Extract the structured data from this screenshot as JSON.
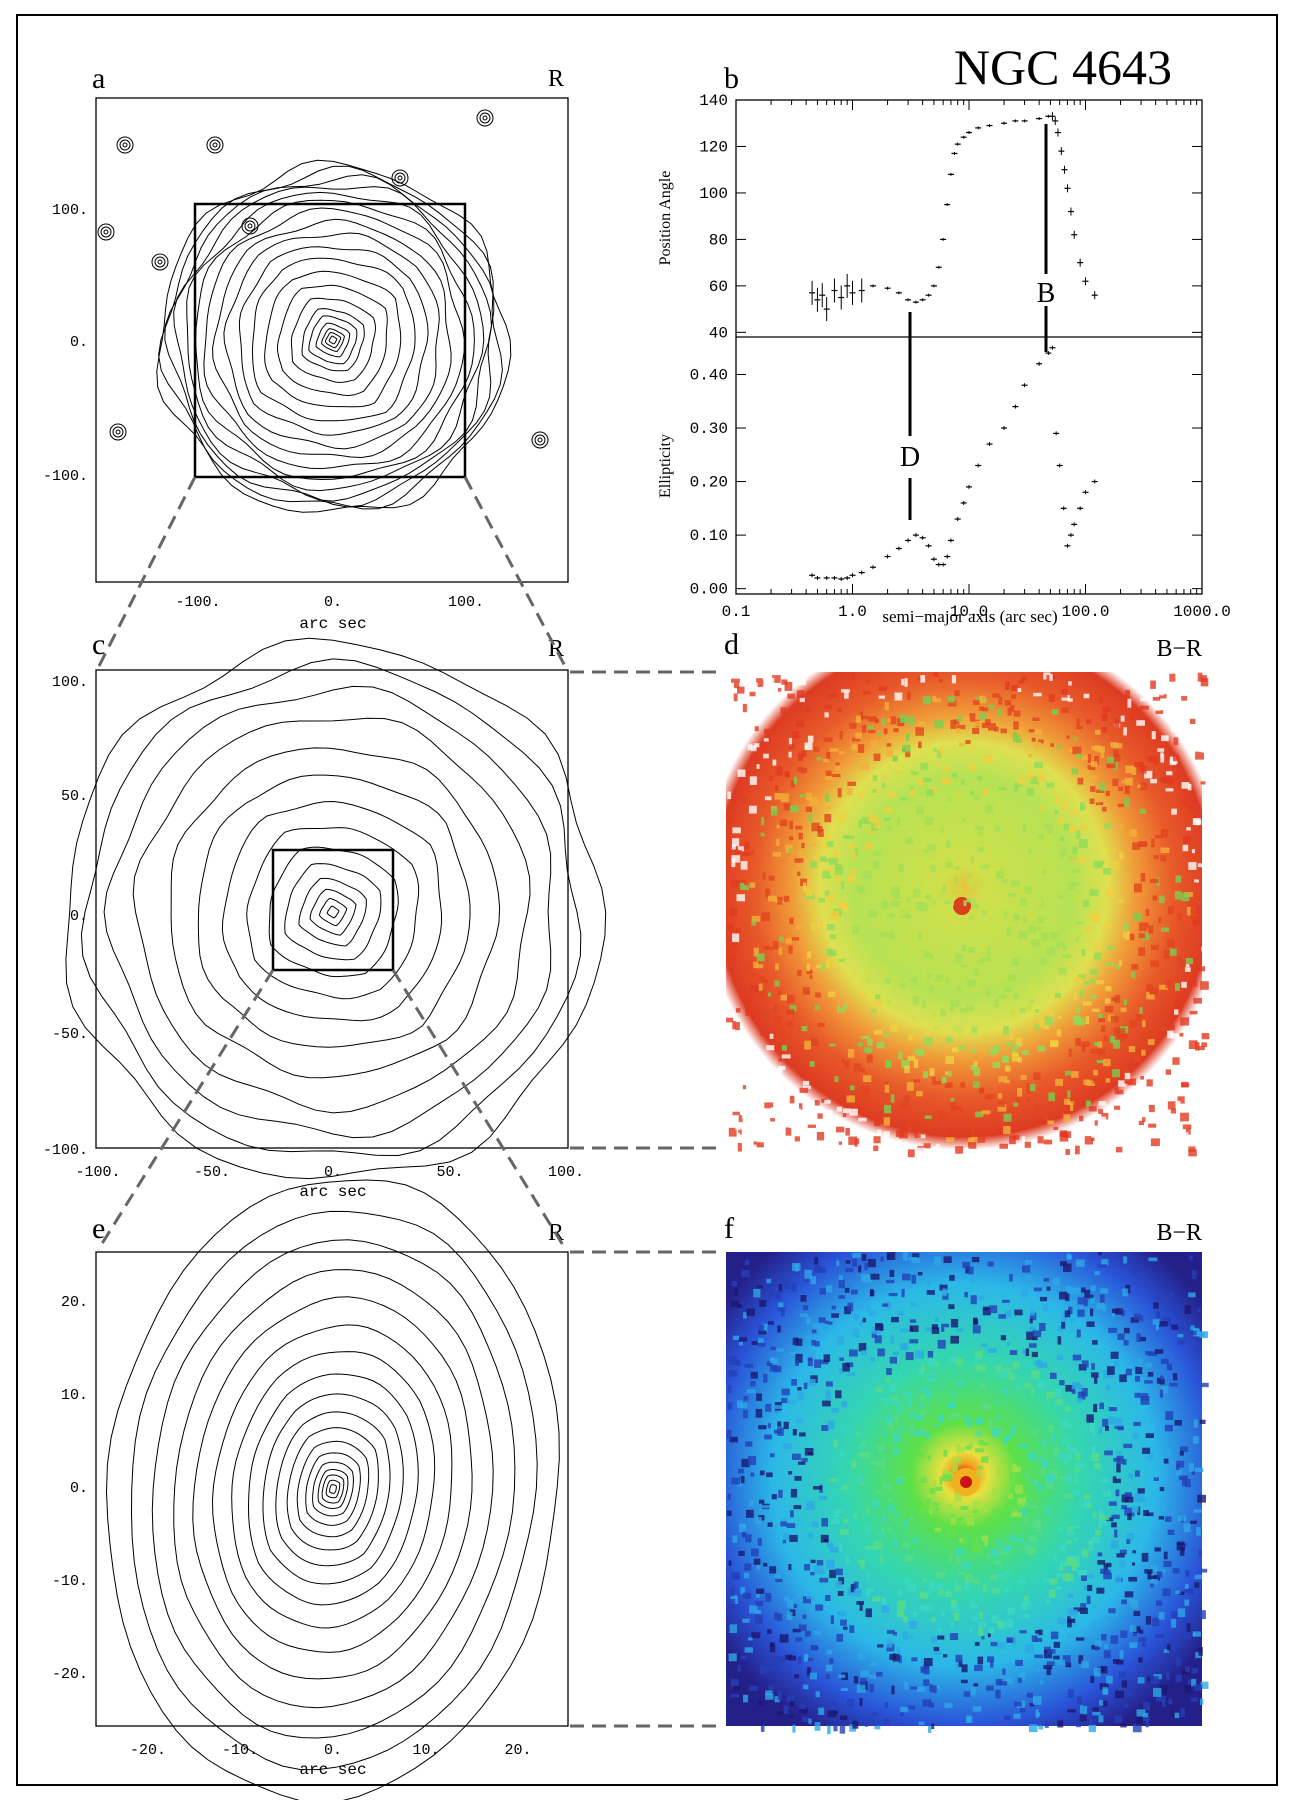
{
  "title": "NGC 4643",
  "panels": {
    "a": {
      "letter": "a",
      "band": "R",
      "xlabel": "arc sec",
      "xticks": [
        "-100.",
        "0.",
        "100."
      ],
      "yticks": [
        "100.",
        "0.",
        "-100."
      ]
    },
    "b": {
      "letter": "b",
      "xlabel": "semi−major axis (arc sec)",
      "top_ylabel": "Position Angle",
      "bottom_ylabel": "Ellipticity",
      "xticks": [
        "0.1",
        "1.0",
        "10.0",
        "100.0",
        "1000.0"
      ],
      "pa_ticks": [
        "140",
        "120",
        "100",
        "80",
        "60",
        "40"
      ],
      "ell_ticks": [
        "0.40",
        "0.30",
        "0.20",
        "0.10",
        "0.00"
      ],
      "marker_B": "B",
      "marker_D": "D"
    },
    "c": {
      "letter": "c",
      "band": "R",
      "xlabel": "arc sec",
      "xticks": [
        "-100.",
        "-50.",
        "0.",
        "50.",
        "100."
      ],
      "yticks": [
        "100.",
        "50.",
        "0.",
        "-50.",
        "-100."
      ]
    },
    "d": {
      "letter": "d",
      "band": "B−R"
    },
    "e": {
      "letter": "e",
      "band": "R",
      "xlabel": "arc sec",
      "xticks": [
        "-20.",
        "-10.",
        "0.",
        "10.",
        "20."
      ],
      "yticks": [
        "20.",
        "10.",
        "0.",
        "-10.",
        "-20."
      ]
    },
    "f": {
      "letter": "f",
      "band": "B−R"
    }
  },
  "chart_data": [
    {
      "type": "scatter",
      "panel": "b-top",
      "ylabel": "Position Angle",
      "x_scale": "log",
      "xlim": [
        0.1,
        1000.0
      ],
      "ylim": [
        38,
        140
      ],
      "x": [
        0.45,
        0.5,
        0.55,
        0.6,
        0.7,
        0.8,
        0.9,
        1.0,
        1.2,
        1.5,
        2.0,
        2.5,
        3.0,
        3.5,
        4.0,
        4.5,
        5.0,
        5.5,
        6.0,
        6.5,
        7.0,
        7.5,
        8.0,
        9.0,
        10.0,
        12.0,
        15.0,
        20.0,
        25.0,
        30.0,
        40.0,
        48.0,
        52.0,
        55.0,
        58.0,
        62.0,
        66.0,
        70.0,
        75.0,
        80.0,
        90.0,
        100.0,
        120.0
      ],
      "y": [
        57,
        54,
        56,
        50,
        58,
        55,
        60,
        57,
        58,
        60,
        59,
        57,
        54,
        53,
        54,
        56,
        60,
        68,
        80,
        95,
        108,
        117,
        121,
        124,
        126,
        128,
        129,
        130,
        131,
        131,
        132,
        133,
        133,
        131,
        126,
        118,
        110,
        102,
        92,
        82,
        70,
        62,
        56
      ]
    },
    {
      "type": "scatter",
      "panel": "b-bottom",
      "ylabel": "Ellipticity",
      "x_scale": "log",
      "xlim": [
        0.1,
        1000.0
      ],
      "ylim": [
        -0.01,
        0.47
      ],
      "x": [
        0.45,
        0.5,
        0.6,
        0.7,
        0.8,
        0.9,
        1.0,
        1.2,
        1.5,
        2.0,
        2.5,
        3.0,
        3.5,
        4.0,
        4.5,
        5.0,
        5.5,
        6.0,
        6.5,
        7.0,
        8.0,
        9.0,
        10.0,
        12.0,
        15.0,
        20.0,
        25.0,
        30.0,
        40.0,
        48.0,
        52.0,
        56.0,
        60.0,
        65.0,
        70.0,
        75.0,
        80.0,
        90.0,
        100.0,
        120.0
      ],
      "y": [
        0.025,
        0.02,
        0.02,
        0.02,
        0.018,
        0.02,
        0.025,
        0.03,
        0.04,
        0.06,
        0.075,
        0.09,
        0.1,
        0.095,
        0.08,
        0.055,
        0.045,
        0.045,
        0.06,
        0.09,
        0.13,
        0.16,
        0.19,
        0.23,
        0.27,
        0.3,
        0.34,
        0.38,
        0.42,
        0.44,
        0.45,
        0.29,
        0.23,
        0.15,
        0.08,
        0.1,
        0.12,
        0.15,
        0.18,
        0.2
      ]
    }
  ]
}
